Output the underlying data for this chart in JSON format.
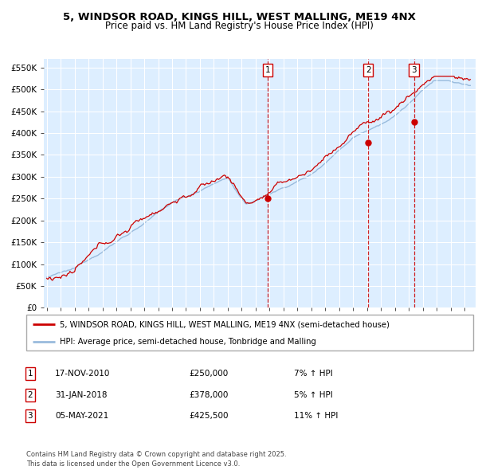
{
  "title1": "5, WINDSOR ROAD, KINGS HILL, WEST MALLING, ME19 4NX",
  "title2": "Price paid vs. HM Land Registry's House Price Index (HPI)",
  "yticks": [
    0,
    50000,
    100000,
    150000,
    200000,
    250000,
    300000,
    350000,
    400000,
    450000,
    500000,
    550000
  ],
  "ytick_labels": [
    "£0",
    "£50K",
    "£100K",
    "£150K",
    "£200K",
    "£250K",
    "£300K",
    "£350K",
    "£400K",
    "£450K",
    "£500K",
    "£550K"
  ],
  "ylim": [
    0,
    570000
  ],
  "xlim_start": 1994.8,
  "xlim_end": 2025.8,
  "sale_dates_num": [
    2010.88,
    2018.08,
    2021.37
  ],
  "sale_prices": [
    250000,
    378000,
    425500
  ],
  "sale_labels": [
    "1",
    "2",
    "3"
  ],
  "red_line_color": "#cc0000",
  "blue_line_color": "#99bbdd",
  "plot_bg_color": "#ddeeff",
  "legend_entries": [
    "5, WINDSOR ROAD, KINGS HILL, WEST MALLING, ME19 4NX (semi-detached house)",
    "HPI: Average price, semi-detached house, Tonbridge and Malling"
  ],
  "table_data": [
    [
      "1",
      "17-NOV-2010",
      "£250,000",
      "7% ↑ HPI"
    ],
    [
      "2",
      "31-JAN-2018",
      "£378,000",
      "5% ↑ HPI"
    ],
    [
      "3",
      "05-MAY-2021",
      "£425,500",
      "11% ↑ HPI"
    ]
  ],
  "footnote": "Contains HM Land Registry data © Crown copyright and database right 2025.\nThis data is licensed under the Open Government Licence v3.0."
}
